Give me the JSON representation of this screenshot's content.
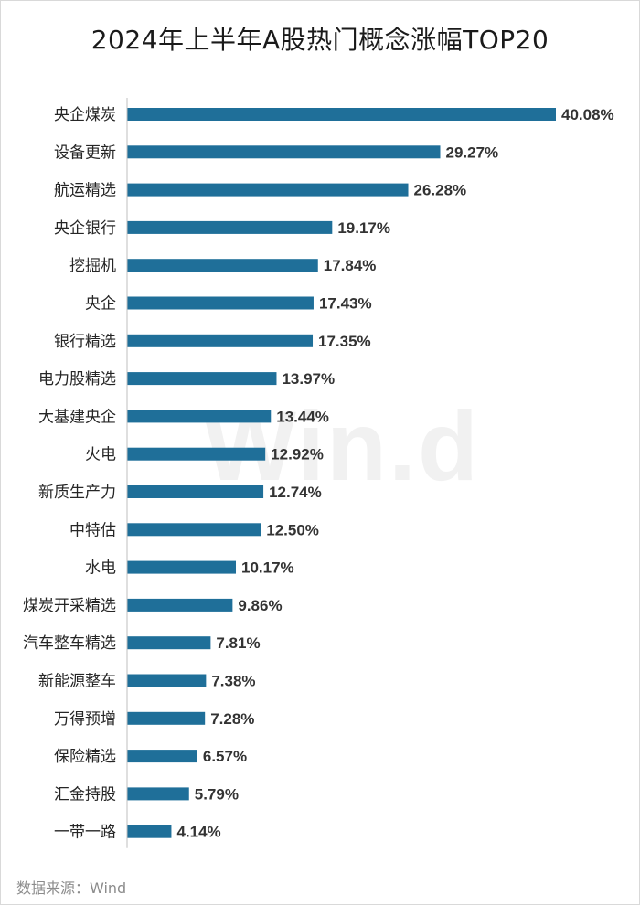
{
  "chart_data": {
    "type": "bar",
    "orientation": "horizontal",
    "title": "2024年上半年A股热门概念涨幅TOP20",
    "categories": [
      "央企煤炭",
      "设备更新",
      "航运精选",
      "央企银行",
      "挖掘机",
      "央企",
      "银行精选",
      "电力股精选",
      "大基建央企",
      "火电",
      "新质生产力",
      "中特估",
      "水电",
      "煤炭开采精选",
      "汽车整车精选",
      "新能源整车",
      "万得预增",
      "保险精选",
      "汇金持股",
      "一带一路"
    ],
    "values": [
      40.08,
      29.27,
      26.28,
      19.17,
      17.84,
      17.43,
      17.35,
      13.97,
      13.44,
      12.92,
      12.74,
      12.5,
      10.17,
      9.86,
      7.81,
      7.38,
      7.28,
      6.57,
      5.79,
      4.14
    ],
    "value_labels": [
      "40.08%",
      "29.27%",
      "26.28%",
      "19.17%",
      "17.84%",
      "17.43%",
      "17.35%",
      "13.97%",
      "13.44%",
      "12.92%",
      "12.74%",
      "12.50%",
      "10.17%",
      "9.86%",
      "7.81%",
      "7.38%",
      "7.28%",
      "6.57%",
      "5.79%",
      "4.14%"
    ],
    "xlim": [
      0,
      40.08
    ],
    "grid": false,
    "legend": "none",
    "bar_color": "#1f6f99"
  },
  "source": "数据来源：Wind",
  "watermark": "Win.d"
}
